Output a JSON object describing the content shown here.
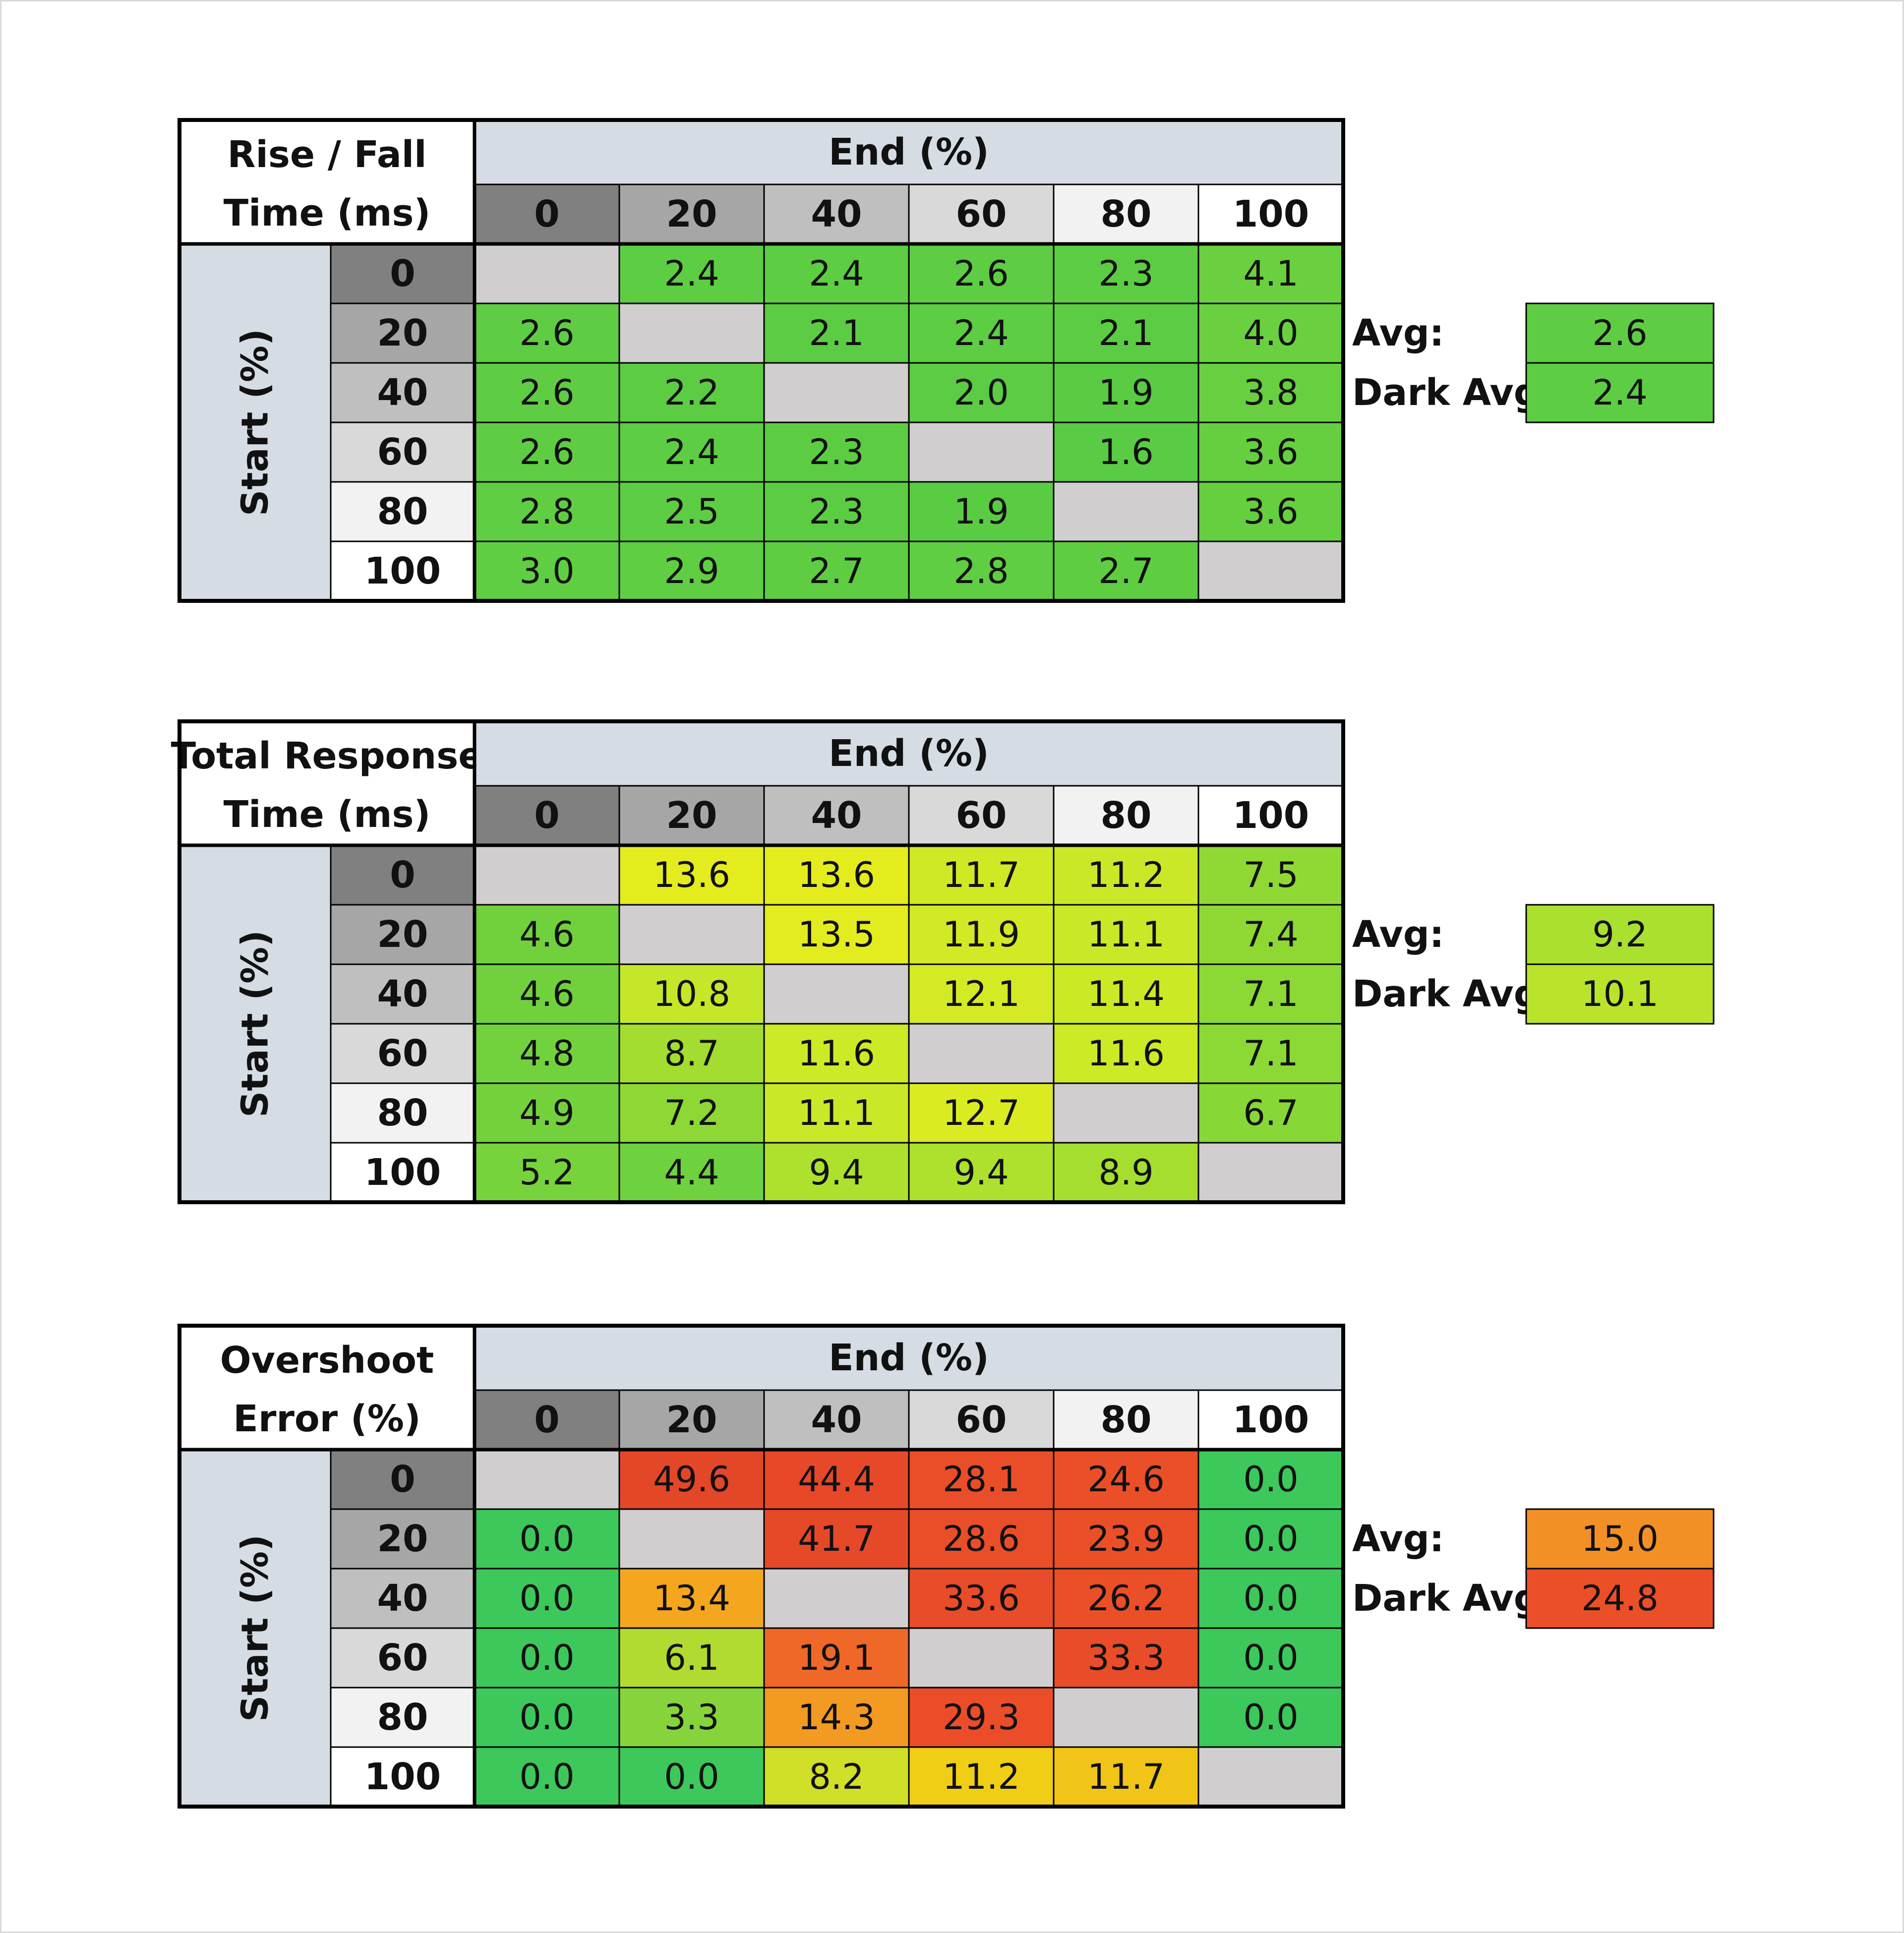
{
  "chart_data": [
    {
      "type": "heatmap",
      "title_lines": [
        "Rise / Fall",
        "Time (ms)"
      ],
      "x_axis_label": "End (%)",
      "y_axis_label": "Start (%)",
      "categories": [
        "0",
        "20",
        "40",
        "60",
        "80",
        "100"
      ],
      "values": [
        [
          null,
          "2.4",
          "2.4",
          "2.6",
          "2.3",
          "4.1"
        ],
        [
          "2.6",
          null,
          "2.1",
          "2.4",
          "2.1",
          "4.0"
        ],
        [
          "2.6",
          "2.2",
          null,
          "2.0",
          "1.9",
          "3.8"
        ],
        [
          "2.6",
          "2.4",
          "2.3",
          null,
          "1.6",
          "3.6"
        ],
        [
          "2.8",
          "2.5",
          "2.3",
          "1.9",
          null,
          "3.6"
        ],
        [
          "3.0",
          "2.9",
          "2.7",
          "2.8",
          "2.7",
          null
        ]
      ],
      "avg_label": "Avg:",
      "avg": "2.6",
      "dark_avg_label": "Dark Avg:",
      "dark_avg": "2.4",
      "color_scale": "response_time"
    },
    {
      "type": "heatmap",
      "title_lines": [
        "Total Response",
        "Time (ms)"
      ],
      "x_axis_label": "End (%)",
      "y_axis_label": "Start (%)",
      "categories": [
        "0",
        "20",
        "40",
        "60",
        "80",
        "100"
      ],
      "values": [
        [
          null,
          "13.6",
          "13.6",
          "11.7",
          "11.2",
          "7.5"
        ],
        [
          "4.6",
          null,
          "13.5",
          "11.9",
          "11.1",
          "7.4"
        ],
        [
          "4.6",
          "10.8",
          null,
          "12.1",
          "11.4",
          "7.1"
        ],
        [
          "4.8",
          "8.7",
          "11.6",
          null,
          "11.6",
          "7.1"
        ],
        [
          "4.9",
          "7.2",
          "11.1",
          "12.7",
          null,
          "6.7"
        ],
        [
          "5.2",
          "4.4",
          "9.4",
          "9.4",
          "8.9",
          null
        ]
      ],
      "avg_label": "Avg:",
      "avg": "9.2",
      "dark_avg_label": "Dark Avg:",
      "dark_avg": "10.1",
      "color_scale": "response_time"
    },
    {
      "type": "heatmap",
      "title_lines": [
        "Overshoot",
        "Error (%)"
      ],
      "x_axis_label": "End (%)",
      "y_axis_label": "Start (%)",
      "categories": [
        "0",
        "20",
        "40",
        "60",
        "80",
        "100"
      ],
      "values": [
        [
          null,
          "49.6",
          "44.4",
          "28.1",
          "24.6",
          "0.0"
        ],
        [
          "0.0",
          null,
          "41.7",
          "28.6",
          "23.9",
          "0.0"
        ],
        [
          "0.0",
          "13.4",
          null,
          "33.6",
          "26.2",
          "0.0"
        ],
        [
          "0.0",
          "6.1",
          "19.1",
          null,
          "33.3",
          "0.0"
        ],
        [
          "0.0",
          "3.3",
          "14.3",
          "29.3",
          null,
          "0.0"
        ],
        [
          "0.0",
          "0.0",
          "8.2",
          "11.2",
          "11.7",
          null
        ]
      ],
      "avg_label": "Avg:",
      "avg": "15.0",
      "dark_avg_label": "Dark Avg:",
      "dark_avg": "24.8",
      "color_scale": "overshoot"
    }
  ],
  "colors": {
    "header_shades": [
      "#808080",
      "#a6a6a6",
      "#bfbfbf",
      "#d9d9d9",
      "#f2f2f2",
      "#ffffff"
    ],
    "axis_band": "#d6dce4",
    "empty_cell": "#d0cece",
    "border": "#000000"
  }
}
